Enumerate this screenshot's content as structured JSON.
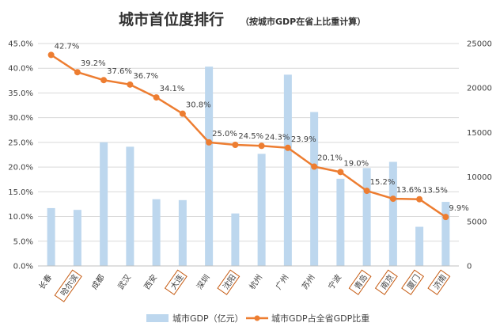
{
  "chart_data": {
    "type": "bar+line",
    "title": "城市首位度排行",
    "subtitle": "（按城市GDP在省上比重计算）",
    "categories": [
      "长春",
      "哈尔滨",
      "成都",
      "武汉",
      "西安",
      "大连",
      "深圳",
      "沈阳",
      "杭州",
      "广州",
      "苏州",
      "宁波",
      "青岛",
      "南京",
      "厦门",
      "济南"
    ],
    "highlighted": [
      "哈尔滨",
      "大连",
      "沈阳",
      "青岛",
      "南京",
      "厦门",
      "济南"
    ],
    "series": [
      {
        "name": "城市GDP（亿元）",
        "type": "bar",
        "axis": "right",
        "color": "#bdd7ee",
        "values": [
          6500,
          6300,
          13900,
          13400,
          7500,
          7400,
          22400,
          5900,
          12600,
          21500,
          17300,
          9800,
          11000,
          11700,
          4400,
          7200
        ]
      },
      {
        "name": "城市GDP占全省GDP比重",
        "type": "line",
        "axis": "left",
        "color": "#ed7d31",
        "values": [
          42.7,
          39.2,
          37.6,
          36.7,
          34.1,
          30.8,
          25.0,
          24.5,
          24.3,
          23.9,
          20.1,
          19.0,
          15.2,
          13.6,
          13.5,
          9.9
        ],
        "labels": [
          "42.7%",
          "39.2%",
          "37.6%",
          "36.7%",
          "34.1%",
          "30.8%",
          "25.0%",
          "24.5%",
          "24.3%",
          "23.9%",
          "20.1%",
          "19.0%",
          "15.2%",
          "13.6%",
          "13.5%",
          "9.9%"
        ]
      }
    ],
    "y_left": {
      "min": 0,
      "max": 45,
      "step": 5,
      "ticks": [
        "0.0%",
        "5.0%",
        "10.0%",
        "15.0%",
        "20.0%",
        "25.0%",
        "30.0%",
        "35.0%",
        "40.0%",
        "45.0%"
      ]
    },
    "y_right": {
      "min": 0,
      "max": 25000,
      "step": 5000,
      "ticks": [
        "0",
        "5000",
        "10000",
        "15000",
        "20000",
        "25000"
      ]
    },
    "grid": true,
    "legend_position": "bottom"
  }
}
